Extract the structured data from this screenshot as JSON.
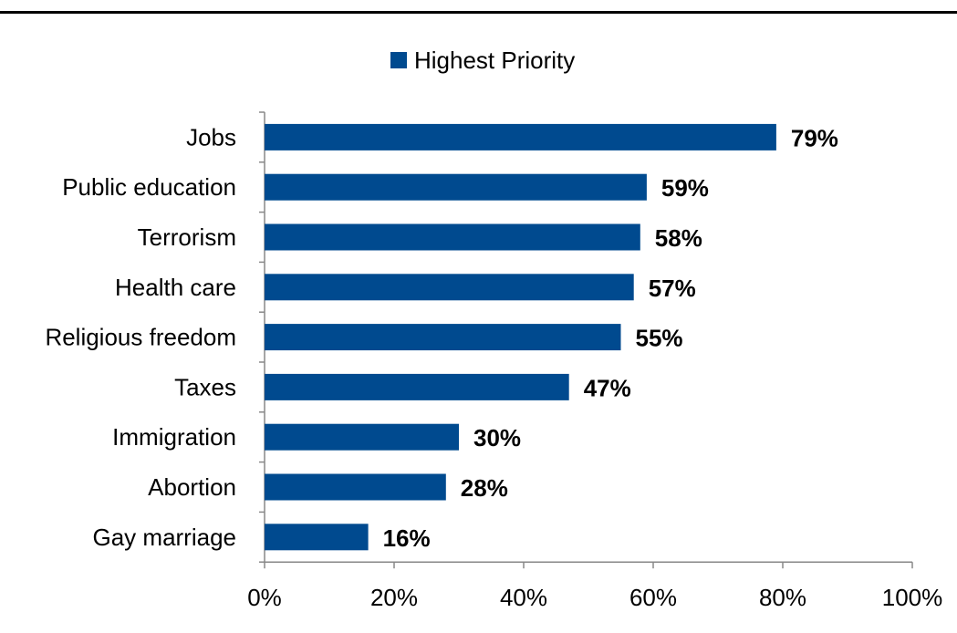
{
  "chart_data": {
    "type": "bar",
    "orientation": "horizontal",
    "categories": [
      "Jobs",
      "Public education",
      "Terrorism",
      "Health care",
      "Religious freedom",
      "Taxes",
      "Immigration",
      "Abortion",
      "Gay marriage"
    ],
    "series": [
      {
        "name": "Highest Priority",
        "values": [
          79,
          59,
          58,
          57,
          55,
          47,
          30,
          28,
          16
        ],
        "data_labels": [
          "79%",
          "59%",
          "58%",
          "57%",
          "55%",
          "47%",
          "30%",
          "28%",
          "16%"
        ],
        "color": "#004A8F"
      }
    ],
    "x_ticks": [
      "0%",
      "20%",
      "40%",
      "60%",
      "80%",
      "100%"
    ],
    "xlim": [
      0,
      100
    ],
    "xlabel": "",
    "ylabel": "",
    "grid": false,
    "legend_position": "top"
  }
}
